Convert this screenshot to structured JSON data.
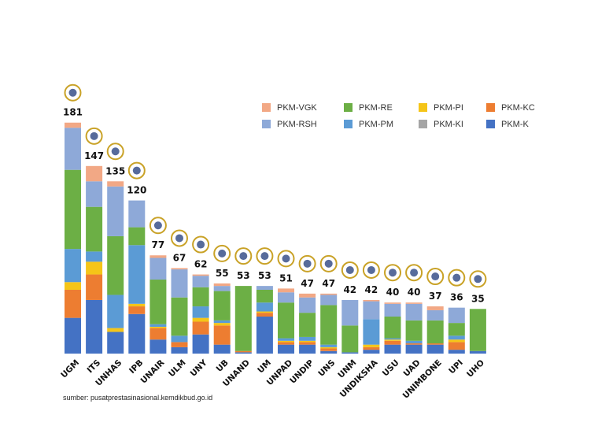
{
  "chart_data": {
    "type": "bar",
    "stacked": true,
    "source": "sumber: pusatprestasinasional.kemdikbud.go.id",
    "categories": [
      "UGM",
      "ITS",
      "UNHAS",
      "IPB",
      "UNAIR",
      "ULM",
      "UNY",
      "UB",
      "UNAND",
      "UM",
      "UNPAD",
      "UNDIP",
      "UNS",
      "UNM",
      "UNDIKSHA",
      "USU",
      "UAD",
      "UNIMBONE",
      "UPI",
      "UHO"
    ],
    "totals": [
      181,
      147,
      135,
      120,
      77,
      67,
      62,
      55,
      53,
      53,
      51,
      47,
      47,
      42,
      42,
      40,
      40,
      37,
      36,
      35
    ],
    "ylim": [
      0,
      190
    ],
    "legend": [
      {
        "name": "PKM-VGK",
        "color": "#F2A885"
      },
      {
        "name": "PKM-RSH",
        "color": "#8EA9D8"
      },
      {
        "name": "PKM-RE",
        "color": "#6CAF45"
      },
      {
        "name": "PKM-PM",
        "color": "#5B9BD5"
      },
      {
        "name": "PKM-PI",
        "color": "#F5C518"
      },
      {
        "name": "PKM-KI",
        "color": "#A5A5A5"
      },
      {
        "name": "PKM-KC",
        "color": "#ED7D31"
      },
      {
        "name": "PKM-K",
        "color": "#4472C4"
      }
    ],
    "series": [
      {
        "name": "PKM-K",
        "color": "#4472C4",
        "values": [
          28,
          42,
          17,
          31,
          11,
          5,
          15,
          7,
          1,
          29,
          7,
          7,
          2,
          1,
          3,
          7,
          7,
          7,
          3,
          2
        ]
      },
      {
        "name": "PKM-KC",
        "color": "#ED7D31",
        "values": [
          22,
          20,
          0,
          6,
          9,
          4,
          10,
          15,
          1,
          3,
          2,
          2,
          2,
          0,
          2,
          3,
          1,
          1,
          6,
          0
        ]
      },
      {
        "name": "PKM-KI",
        "color": "#A5A5A5",
        "values": [
          0,
          0,
          0,
          0,
          0,
          0,
          0,
          0,
          0,
          0,
          0,
          0,
          0,
          0,
          0,
          0,
          0,
          0,
          0,
          0
        ]
      },
      {
        "name": "PKM-PI",
        "color": "#F5C518",
        "values": [
          6,
          10,
          3,
          2,
          1,
          0,
          3,
          2,
          0,
          1,
          1,
          1,
          1,
          0,
          2,
          1,
          0,
          0,
          2,
          0
        ]
      },
      {
        "name": "PKM-PM",
        "color": "#5B9BD5",
        "values": [
          26,
          8,
          26,
          46,
          2,
          5,
          9,
          2,
          0,
          7,
          2,
          3,
          2,
          0,
          20,
          1,
          2,
          0,
          3,
          0
        ]
      },
      {
        "name": "PKM-RE",
        "color": "#6CAF45",
        "values": [
          62,
          35,
          46,
          14,
          35,
          30,
          15,
          23,
          51,
          10,
          28,
          19,
          31,
          21,
          0,
          17,
          16,
          18,
          10,
          33
        ]
      },
      {
        "name": "PKM-RSH",
        "color": "#8EA9D8",
        "values": [
          33,
          20,
          39,
          21,
          17,
          22,
          9,
          4,
          0,
          3,
          8,
          12,
          8,
          20,
          14,
          10,
          13,
          8,
          12,
          0
        ]
      },
      {
        "name": "PKM-VGK",
        "color": "#F2A885",
        "values": [
          4,
          12,
          4,
          0,
          2,
          1,
          1,
          2,
          0,
          0,
          3,
          3,
          1,
          0,
          1,
          1,
          1,
          3,
          0,
          0
        ]
      }
    ]
  }
}
